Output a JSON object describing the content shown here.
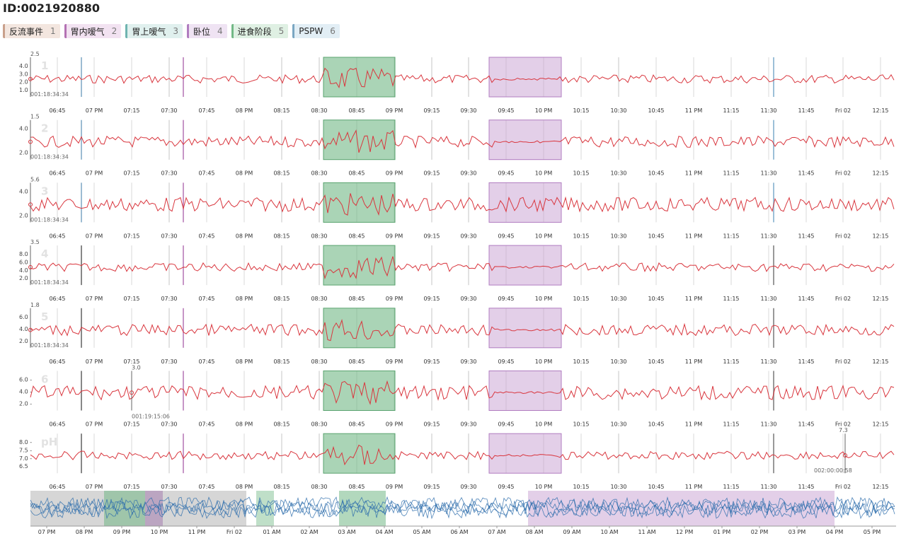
{
  "page": {
    "id_label": "ID:0021920880"
  },
  "legend": [
    {
      "label": "反流事件",
      "num": "1",
      "color": "#c9a08b",
      "bg": "#f3e6df"
    },
    {
      "label": "胃内嗳气",
      "num": "2",
      "color": "#b472b4",
      "bg": "#f2e2f1"
    },
    {
      "label": "胃上嗳气",
      "num": "3",
      "color": "#6fb4b0",
      "bg": "#e0f0ee"
    },
    {
      "label": "卧位",
      "num": "4",
      "color": "#b07cc0",
      "bg": "#efe3f3"
    },
    {
      "label": "进食阶段",
      "num": "5",
      "color": "#72b886",
      "bg": "#dff0e3"
    },
    {
      "label": "PSPW",
      "num": "6",
      "color": "#7aa6c2",
      "bg": "#e2eef5"
    }
  ],
  "time_ticks": [
    "06:45",
    "07 PM",
    "07:15",
    "07:30",
    "07:45",
    "08 PM",
    "08:15",
    "08:30",
    "08:45",
    "09 PM",
    "09:15",
    "09:30",
    "09:45",
    "10 PM",
    "10:15",
    "10:30",
    "10:45",
    "11 PM",
    "11:15",
    "11:30",
    "11:45",
    "Fri 02",
    "12:15"
  ],
  "nav_ticks": [
    "07 PM",
    "08 PM",
    "09 PM",
    "10 PM",
    "11 PM",
    "Fri 02",
    "01 AM",
    "02 AM",
    "03 AM",
    "04 AM",
    "05 AM",
    "06 AM",
    "07 AM",
    "08 AM",
    "09 AM",
    "10 AM",
    "11 AM",
    "12 PM",
    "01 PM",
    "02 PM",
    "03 PM",
    "04 PM",
    "05 PM"
  ],
  "colors": {
    "line": "#d9363e",
    "meal": "#72b886",
    "supine": "#c89fd2",
    "nav_line": "#2f6fad",
    "grid": "#d8d8d8"
  },
  "chart_data": [
    {
      "type": "line",
      "name": "1",
      "y_ticks": [
        "4.0",
        "3.0",
        "2.0",
        "1.0"
      ],
      "top_label": "2.5",
      "cursor_time": "001:18:34:34"
    },
    {
      "type": "line",
      "name": "2",
      "y_ticks": [
        "4.0",
        "2.0"
      ],
      "top_label": "1.5",
      "cursor_time": "001:18:34:34"
    },
    {
      "type": "line",
      "name": "3",
      "y_ticks": [
        "4.0",
        "2.0"
      ],
      "top_label": "5.6",
      "cursor_time": "001:18:34:34"
    },
    {
      "type": "line",
      "name": "4",
      "y_ticks": [
        "8.0",
        "6.0",
        "4.0",
        "2.0"
      ],
      "top_label": "3.5",
      "cursor_time": "001:18:34:34"
    },
    {
      "type": "line",
      "name": "5",
      "y_ticks": [
        "6.0",
        "4.0",
        "2.0"
      ],
      "top_label": "1.8",
      "cursor_time": "001:18:34:34"
    },
    {
      "type": "line",
      "name": "6",
      "y_ticks": [
        "6.0 -",
        "4.0 -",
        "2.0 -"
      ],
      "top_label": "3.0",
      "cursor_time": "001:19:15:06"
    },
    {
      "type": "line",
      "name": "pH",
      "y_ticks": [
        "8.0 -",
        "7.5 -",
        "7.0 -",
        "6.5"
      ],
      "top_label": "7.3",
      "cursor_time": "002:00:00:58"
    }
  ]
}
